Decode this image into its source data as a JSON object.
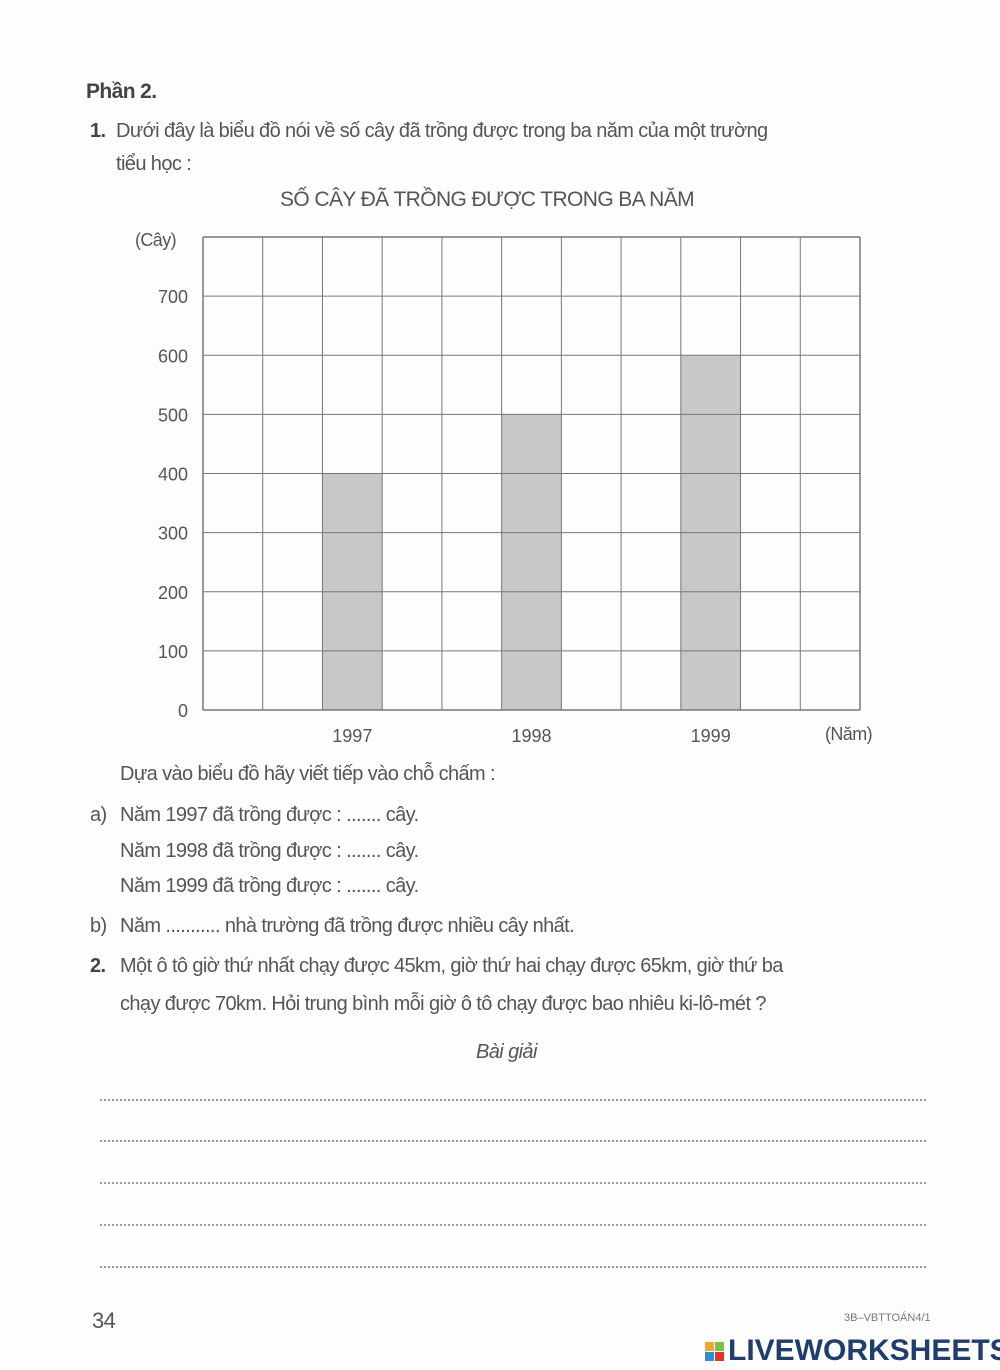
{
  "section_title": "Phần 2.",
  "q1": {
    "number": "1.",
    "text_line1": "Dưới đây là biểu đồ nói về số cây đã trồng được trong ba năm của một trường",
    "text_line2": "tiểu học :",
    "instruction": "Dựa vào biểu đồ hãy viết tiếp vào chỗ chấm :",
    "a_label": "a)",
    "a_lines": [
      "Năm 1997 đã trồng được : ....... cây.",
      "Năm 1998 đã trồng được : ....... cây.",
      "Năm 1999 đã trồng được : ....... cây."
    ],
    "b_label": "b)",
    "b_text": "Năm ........... nhà trường đã trồng được nhiều cây nhất."
  },
  "chart_data": {
    "type": "bar",
    "title": "SỐ CÂY ĐÃ TRỒNG ĐƯỢC TRONG BA NĂM",
    "ylabel": "(Cây)",
    "xlabel": "(Năm)",
    "categories": [
      "1997",
      "1998",
      "1999"
    ],
    "values": [
      400,
      500,
      600
    ],
    "ylim": [
      0,
      800
    ],
    "yticks": [
      "0",
      "100",
      "200",
      "300",
      "400",
      "500",
      "600",
      "700"
    ],
    "grid": true,
    "bar_color": "#c8c8c8"
  },
  "q2": {
    "number": "2.",
    "text_line1": "Một ô tô giờ thứ nhất chạy được 45km, giờ thứ hai chạy được 65km, giờ thứ ba",
    "text_line2": "chạy được 70km. Hỏi trung bình mỗi giờ ô tô chạy được bao nhiêu ki-lô-mét ?",
    "solution_heading": "Bài giải"
  },
  "footer": {
    "page_number": "34",
    "code": "3B–VBTTOÁN4/1",
    "logo": "LIVEWORKSHEETS"
  }
}
